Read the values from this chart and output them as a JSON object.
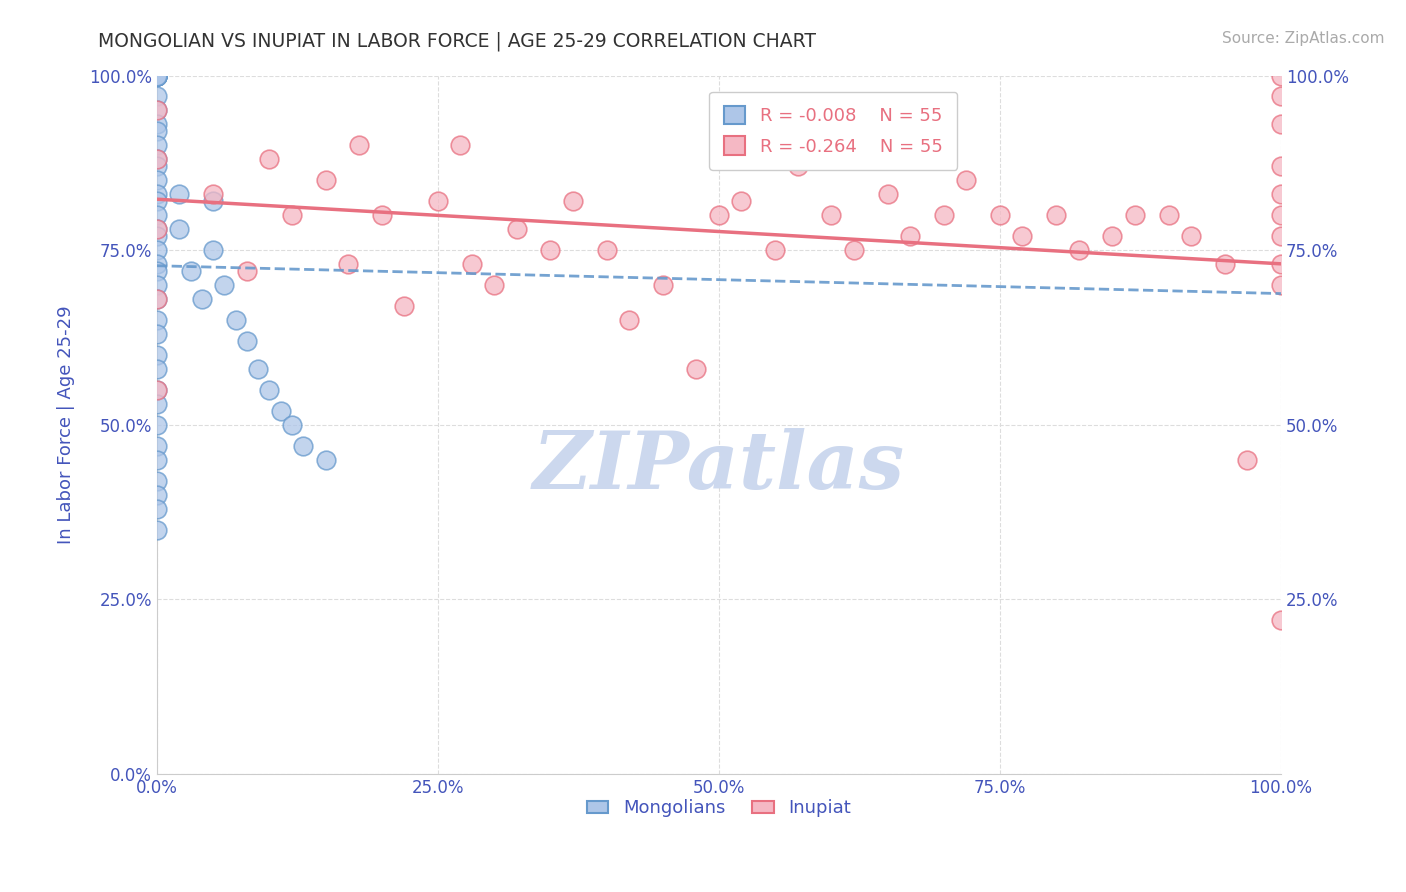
{
  "title": "MONGOLIAN VS INUPIAT IN LABOR FORCE | AGE 25-29 CORRELATION CHART",
  "source": "Source: ZipAtlas.com",
  "ylabel": "In Labor Force | Age 25-29",
  "xlim": [
    0.0,
    1.0
  ],
  "ylim": [
    0.0,
    1.0
  ],
  "xticks": [
    0.0,
    0.25,
    0.5,
    0.75,
    1.0
  ],
  "yticks": [
    0.0,
    0.25,
    0.5,
    0.75,
    1.0
  ],
  "xtick_labels": [
    "0.0%",
    "25.0%",
    "50.0%",
    "75.0%",
    "100.0%"
  ],
  "ytick_labels": [
    "0.0%",
    "25.0%",
    "50.0%",
    "75.0%",
    "100.0%"
  ],
  "mongolian_fill": "#aec6e8",
  "mongolian_edge": "#6699cc",
  "inupiat_fill": "#f5b8c4",
  "inupiat_edge": "#e87080",
  "legend_R_mongolian": "R = -0.008",
  "legend_N_mongolian": "N = 55",
  "legend_R_inupiat": "R = -0.264",
  "legend_N_inupiat": "N = 55",
  "mongolian_x": [
    0.0,
    0.0,
    0.0,
    0.0,
    0.0,
    0.0,
    0.0,
    0.0,
    0.0,
    0.0,
    0.0,
    0.0,
    0.0,
    0.0,
    0.0,
    0.0,
    0.0,
    0.0,
    0.0,
    0.0,
    0.0,
    0.0,
    0.0,
    0.0,
    0.0,
    0.0,
    0.0,
    0.0,
    0.0,
    0.0,
    0.0,
    0.0,
    0.0,
    0.0,
    0.0,
    0.0,
    0.0,
    0.0,
    0.0,
    0.0,
    0.02,
    0.02,
    0.03,
    0.04,
    0.05,
    0.05,
    0.06,
    0.07,
    0.08,
    0.09,
    0.1,
    0.11,
    0.12,
    0.13,
    0.15
  ],
  "mongolian_y": [
    1.0,
    1.0,
    1.0,
    1.0,
    1.0,
    1.0,
    1.0,
    1.0,
    1.0,
    0.97,
    0.95,
    0.93,
    0.92,
    0.9,
    0.88,
    0.87,
    0.85,
    0.83,
    0.82,
    0.8,
    0.78,
    0.77,
    0.75,
    0.73,
    0.72,
    0.7,
    0.68,
    0.65,
    0.63,
    0.6,
    0.58,
    0.55,
    0.53,
    0.5,
    0.47,
    0.45,
    0.42,
    0.4,
    0.38,
    0.35,
    0.83,
    0.78,
    0.72,
    0.68,
    0.82,
    0.75,
    0.7,
    0.65,
    0.62,
    0.58,
    0.55,
    0.52,
    0.5,
    0.47,
    0.45
  ],
  "inupiat_x": [
    0.0,
    0.0,
    0.0,
    0.0,
    0.0,
    0.05,
    0.08,
    0.1,
    0.12,
    0.15,
    0.17,
    0.18,
    0.2,
    0.22,
    0.25,
    0.27,
    0.28,
    0.3,
    0.32,
    0.35,
    0.37,
    0.4,
    0.42,
    0.45,
    0.48,
    0.5,
    0.52,
    0.55,
    0.57,
    0.6,
    0.62,
    0.65,
    0.67,
    0.7,
    0.72,
    0.75,
    0.77,
    0.8,
    0.82,
    0.85,
    0.87,
    0.9,
    0.92,
    0.95,
    0.97,
    1.0,
    1.0,
    1.0,
    1.0,
    1.0,
    1.0,
    1.0,
    1.0,
    1.0,
    1.0
  ],
  "inupiat_y": [
    0.95,
    0.88,
    0.78,
    0.68,
    0.55,
    0.83,
    0.72,
    0.88,
    0.8,
    0.85,
    0.73,
    0.9,
    0.8,
    0.67,
    0.82,
    0.9,
    0.73,
    0.7,
    0.78,
    0.75,
    0.82,
    0.75,
    0.65,
    0.7,
    0.58,
    0.8,
    0.82,
    0.75,
    0.87,
    0.8,
    0.75,
    0.83,
    0.77,
    0.8,
    0.85,
    0.8,
    0.77,
    0.8,
    0.75,
    0.77,
    0.8,
    0.8,
    0.77,
    0.73,
    0.45,
    1.0,
    0.97,
    0.93,
    0.87,
    0.83,
    0.8,
    0.77,
    0.73,
    0.7,
    0.22
  ],
  "background_color": "#ffffff",
  "grid_color": "#dddddd",
  "axis_color": "#4455bb",
  "watermark_text": "ZIPatlas",
  "watermark_color": "#ccd8ee"
}
